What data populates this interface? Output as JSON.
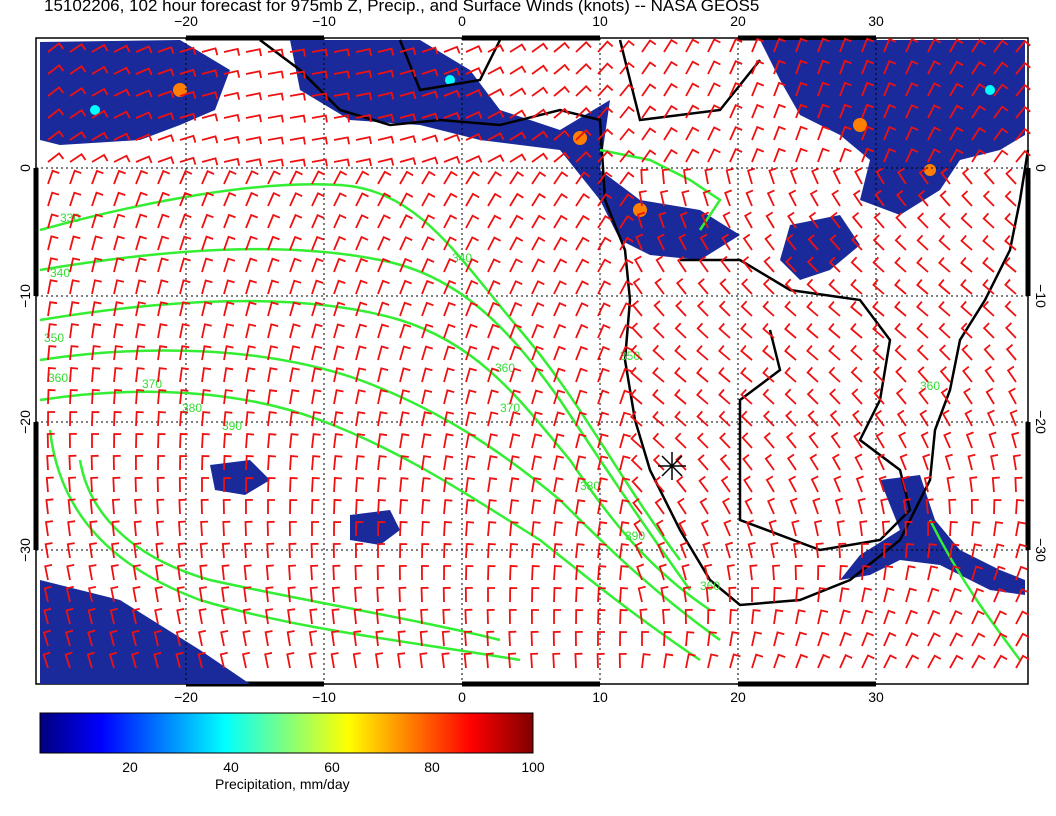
{
  "title": "15102206, 102 hour forecast for 975mb Z, Precip., and Surface Winds (knots) -- NASA GEOS5",
  "lon_ticks": [
    "−20",
    "−10",
    "0",
    "10",
    "20",
    "30"
  ],
  "lat_ticks": [
    "0",
    "−10",
    "−20",
    "−30"
  ],
  "contour_labels": [
    "330",
    "340",
    "350",
    "360",
    "370",
    "380",
    "390",
    "340",
    "350",
    "360",
    "370",
    "380",
    "390",
    "360",
    "360"
  ],
  "colorbar": {
    "label": "Precipitation, mm/day",
    "ticks": [
      "20",
      "40",
      "60",
      "80",
      "100"
    ],
    "colors": [
      "#00007f",
      "#0000ff",
      "#007fff",
      "#00ffff",
      "#7fff7f",
      "#ffff00",
      "#ff7f00",
      "#ff0000",
      "#7f0000"
    ]
  },
  "marker": {
    "label": "star-marker"
  },
  "styles": {
    "contour_color": "#33ee33",
    "barb_color": "#ee1111",
    "coast_color": "#000000"
  }
}
